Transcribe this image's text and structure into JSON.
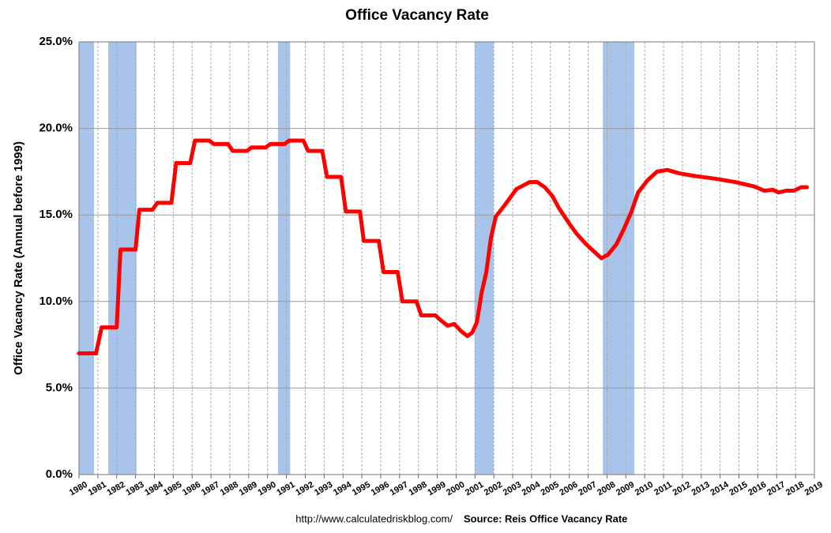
{
  "chart_data": {
    "type": "line",
    "title": "Office Vacancy Rate",
    "y_label": "Office Vacancy Rate (Annual before 1999)",
    "footnote_url": "http://www.calculatedriskblog.com/",
    "footnote_source": "Source: Reis Office Vacancy Rate",
    "color": "#ff0000",
    "recession_color": "#a9c4eb",
    "recessions": [
      [
        1980.0,
        1980.8
      ],
      [
        1981.55,
        1983.05
      ],
      [
        1990.55,
        1991.2
      ],
      [
        2000.98,
        2001.99
      ],
      [
        2007.78,
        2009.45
      ]
    ],
    "x": [
      1980.0,
      1980.9,
      1981.2,
      1982.0,
      1982.2,
      1983.0,
      1983.2,
      1983.9,
      1984.15,
      1984.9,
      1985.15,
      1985.9,
      1986.15,
      1986.9,
      1987.15,
      1987.9,
      1988.15,
      1988.9,
      1989.15,
      1989.9,
      1990.15,
      1990.9,
      1991.15,
      1991.9,
      1992.15,
      1992.9,
      1993.15,
      1993.9,
      1994.15,
      1994.9,
      1995.1,
      1995.9,
      1996.15,
      1996.9,
      1997.15,
      1997.9,
      1998.15,
      1998.9,
      1999.2,
      1999.55,
      1999.9,
      2000.25,
      2000.6,
      2000.85,
      2001.1,
      2001.35,
      2001.6,
      2001.85,
      2002.1,
      2002.6,
      2003.2,
      2003.9,
      2004.3,
      2004.7,
      2005.1,
      2005.45,
      2006.0,
      2006.4,
      2006.9,
      2007.3,
      2007.7,
      2008.05,
      2008.5,
      2008.9,
      2009.3,
      2009.65,
      2010.15,
      2010.65,
      2011.2,
      2011.85,
      2012.65,
      2013.7,
      2014.8,
      2015.8,
      2016.35,
      2016.8,
      2017.1,
      2017.5,
      2017.9,
      2018.3,
      2018.6
    ],
    "values": [
      7.0,
      7.0,
      8.5,
      8.5,
      13.0,
      13.0,
      15.3,
      15.3,
      15.7,
      15.7,
      18.0,
      18.0,
      19.3,
      19.3,
      19.1,
      19.1,
      18.7,
      18.7,
      18.9,
      18.9,
      19.1,
      19.1,
      19.3,
      19.3,
      18.7,
      18.7,
      17.2,
      17.2,
      15.2,
      15.2,
      13.5,
      13.5,
      11.7,
      11.7,
      10.0,
      10.0,
      9.2,
      9.2,
      8.9,
      8.6,
      8.7,
      8.3,
      8.0,
      8.2,
      8.8,
      10.5,
      11.7,
      13.7,
      14.9,
      15.6,
      16.5,
      16.9,
      16.9,
      16.6,
      16.1,
      15.4,
      14.5,
      13.9,
      13.3,
      12.9,
      12.5,
      12.7,
      13.3,
      14.2,
      15.2,
      16.3,
      17.0,
      17.5,
      17.6,
      17.4,
      17.25,
      17.1,
      16.9,
      16.65,
      16.4,
      16.45,
      16.3,
      16.4,
      16.4,
      16.6,
      16.6
    ],
    "xlim": [
      1980,
      2019
    ],
    "xticks": [
      1980,
      1981,
      1982,
      1983,
      1984,
      1985,
      1986,
      1987,
      1988,
      1989,
      1990,
      1991,
      1992,
      1993,
      1994,
      1995,
      1996,
      1997,
      1998,
      1999,
      2000,
      2001,
      2002,
      2003,
      2004,
      2005,
      2006,
      2007,
      2008,
      2009,
      2010,
      2011,
      2012,
      2013,
      2014,
      2015,
      2016,
      2017,
      2018,
      2019
    ],
    "ylim": [
      0,
      25
    ],
    "yticks": [
      {
        "value": 0,
        "label": "0.0%"
      },
      {
        "value": 5,
        "label": "5.0%"
      },
      {
        "value": 10,
        "label": "10.0%"
      },
      {
        "value": 15,
        "label": "15.0%"
      },
      {
        "value": 20,
        "label": "20.0%"
      },
      {
        "value": 25,
        "label": "25.0%"
      }
    ],
    "grid": true
  }
}
